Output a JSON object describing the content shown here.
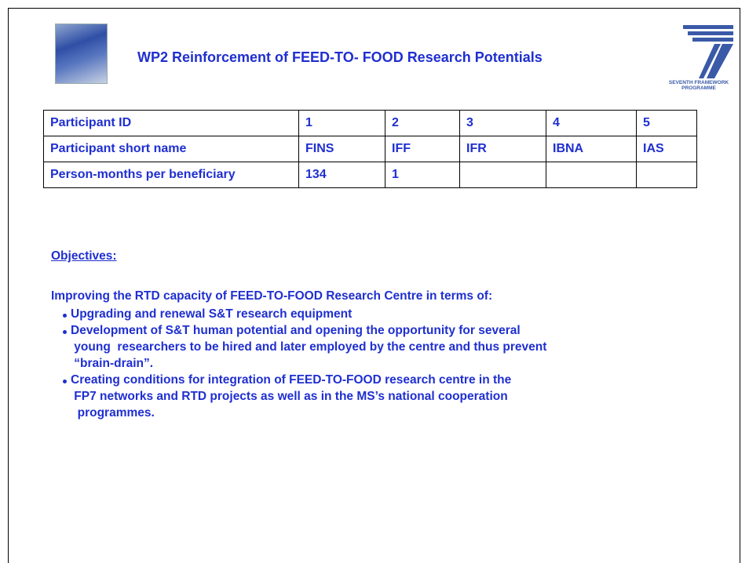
{
  "header": {
    "title": "WP2 Reinforcement of FEED-TO- FOOD Research Potentials",
    "logo_text": [
      "SEVENTH FRAMEWORK",
      "PROGRAMME"
    ]
  },
  "table": {
    "rows": [
      [
        "Participant ID",
        "1",
        "2",
        "3",
        "4",
        "5"
      ],
      [
        "Participant short name",
        "FINS",
        "IFF",
        "IFR",
        "IBNA",
        "IAS"
      ],
      [
        "Person-months per beneficiary",
        "134",
        "1",
        null,
        null,
        null
      ]
    ]
  },
  "objectives": {
    "heading": "Objectives:",
    "intro": "Improving the RTD capacity of FEED-TO-FOOD Research Centre in terms of:",
    "bullets": [
      [
        "Upgrading and renewal S&T research equipment"
      ],
      [
        "Development of S&T human potential and opening the opportunity for several",
        " young  researchers to be hired and later employed by the centre and thus prevent",
        " “brain-drain”."
      ],
      [
        "Creating conditions for integration of FEED-TO-FOOD research centre in the",
        " FP7 networks and RTD projects as well as in the MS’s national cooperation",
        "  programmes."
      ]
    ]
  }
}
